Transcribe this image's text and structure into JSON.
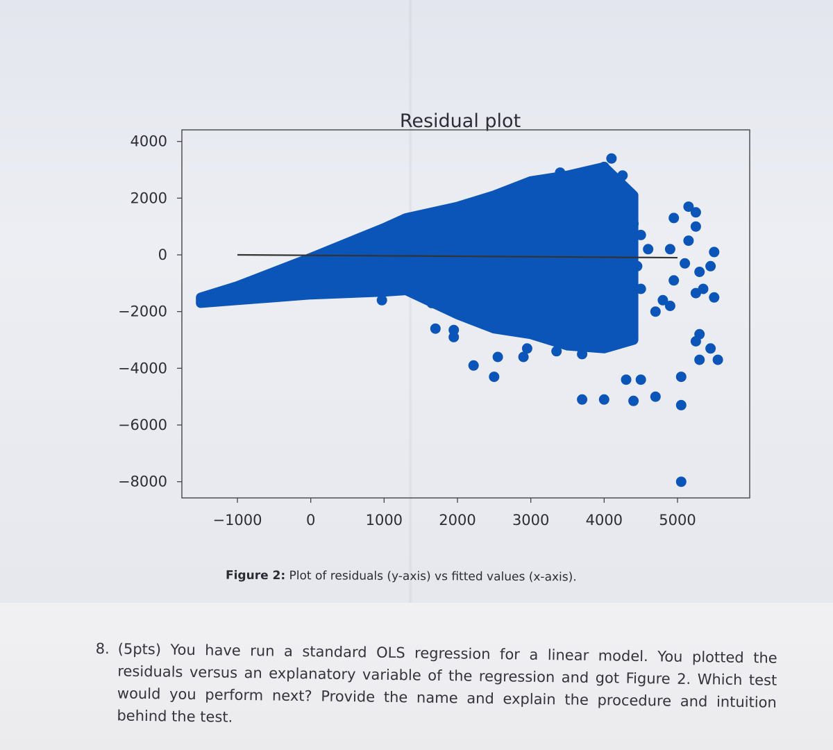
{
  "chart_data": {
    "type": "scatter",
    "title": "Residual plot",
    "xlabel": "",
    "ylabel": "",
    "xlim": [
      -1900,
      5900
    ],
    "ylim": [
      -9000,
      4200
    ],
    "x_ticks": [
      -1000,
      0,
      1000,
      2000,
      3000,
      4000,
      5000
    ],
    "x_tick_labels": [
      "−1000",
      "0",
      "1000",
      "2000",
      "3000",
      "4000",
      "5000"
    ],
    "y_ticks": [
      4000,
      2000,
      0,
      -2000,
      -4000,
      -6000,
      -8000
    ],
    "y_tick_labels": [
      "4000",
      "2000",
      "0",
      "−2000",
      "−4000",
      "−6000",
      "−8000"
    ],
    "grid": false,
    "point_color": "#0b55b8",
    "line_color": "#333333",
    "reference_line": {
      "x": [
        -1000,
        5000
      ],
      "y": [
        0,
        -100
      ]
    },
    "band": {
      "x": [
        -1500,
        -1000,
        0,
        1000,
        1300,
        2000,
        2500,
        3000,
        3500,
        4000,
        4400
      ],
      "upper": [
        -1500,
        -1100,
        -100,
        950,
        1300,
        1700,
        2100,
        2600,
        2800,
        3100,
        2100
      ],
      "lower": [
        -1700,
        -1600,
        -1400,
        -1300,
        -1250,
        -2100,
        -2600,
        -2800,
        -3200,
        -3300,
        -3000
      ]
    },
    "points": [
      [
        970,
        -1600
      ],
      [
        2220,
        -3900
      ],
      [
        2500,
        -4300
      ],
      [
        1650,
        -1700
      ],
      [
        1700,
        -2600
      ],
      [
        1950,
        -2650
      ],
      [
        1950,
        -2900
      ],
      [
        2550,
        -3600
      ],
      [
        2900,
        -3600
      ],
      [
        2950,
        -3300
      ],
      [
        3350,
        -3400
      ],
      [
        3700,
        -3500
      ],
      [
        3700,
        -5100
      ],
      [
        4000,
        -5100
      ],
      [
        4400,
        -5150
      ],
      [
        4700,
        -5000
      ],
      [
        4300,
        -4400
      ],
      [
        4500,
        -4400
      ],
      [
        5050,
        -4300
      ],
      [
        5050,
        -5300
      ],
      [
        5050,
        -8000
      ],
      [
        5550,
        -3700
      ],
      [
        5300,
        -3700
      ],
      [
        5450,
        -3300
      ],
      [
        5300,
        -2800
      ],
      [
        5250,
        -3050
      ],
      [
        5500,
        -1500
      ],
      [
        5350,
        -1200
      ],
      [
        5250,
        -1350
      ],
      [
        5300,
        -600
      ],
      [
        5450,
        -400
      ],
      [
        5500,
        100
      ],
      [
        5150,
        500
      ],
      [
        5250,
        1000
      ],
      [
        5250,
        1500
      ],
      [
        5150,
        1700
      ],
      [
        4950,
        1300
      ],
      [
        4900,
        200
      ],
      [
        4950,
        -900
      ],
      [
        5100,
        -300
      ],
      [
        4700,
        -2000
      ],
      [
        4900,
        -1800
      ],
      [
        4800,
        -1600
      ],
      [
        4600,
        200
      ],
      [
        4500,
        700
      ],
      [
        4400,
        1100
      ],
      [
        4250,
        2300
      ],
      [
        4200,
        1900
      ],
      [
        4100,
        3400
      ],
      [
        4000,
        3100
      ],
      [
        3900,
        3000
      ],
      [
        4000,
        2700
      ],
      [
        3700,
        2600
      ],
      [
        3600,
        2400
      ],
      [
        3250,
        2500
      ],
      [
        3150,
        2300
      ],
      [
        2750,
        2300
      ],
      [
        3800,
        1800
      ],
      [
        4300,
        1500
      ],
      [
        4350,
        600
      ],
      [
        4450,
        -400
      ],
      [
        4500,
        -1200
      ],
      [
        4250,
        -2300
      ],
      [
        3900,
        -2600
      ],
      [
        3550,
        -2900
      ],
      [
        3200,
        -2700
      ],
      [
        2900,
        -2500
      ],
      [
        4350,
        -2800
      ],
      [
        3400,
        2900
      ],
      [
        4250,
        2800
      ]
    ]
  },
  "caption": {
    "label": "Figure 2:",
    "text": "Plot of residuals (y-axis) vs fitted values (x-axis)."
  },
  "question": {
    "number": "8.",
    "text": "(5pts) You have run a standard OLS regression for a linear model. You plotted the residuals versus an explanatory variable of the regression and got Figure 2. Which test would you perform next? Provide the name and explain the procedure and intuition behind the test."
  }
}
